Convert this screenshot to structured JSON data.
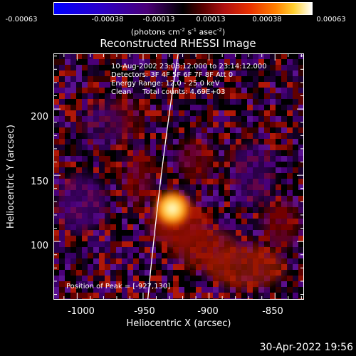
{
  "colorbar": {
    "ticks": [
      "-0.00063",
      "-0.00038",
      "-0.00013",
      "0.00013",
      "0.00038",
      "0.00063"
    ],
    "units_prefix": "(photons cm",
    "units_exp1": "-2",
    "units_mid": " s",
    "units_exp2": "-1",
    "units_mid2": " asec",
    "units_exp3": "-2",
    "units_suffix": ")"
  },
  "title": "Reconstructed RHESSI Image",
  "info": {
    "time": "10-Aug-2002 23:08:12.000 to 23:14:12.000",
    "detectors": "Detectors: 3F 4F 5F 6F 7F 8F Att 0",
    "energy": "Energy Range: 12.0 - 25.0 keV",
    "clean": "Clean     Total counts: 4.69E+03",
    "peak": "Position of Peak = [-927,130]"
  },
  "axes": {
    "xlabel": "Heliocentric X (arcsec)",
    "ylabel": "Heliocentric Y (arcsec)",
    "xticks": [
      "-1000",
      "-950",
      "-900",
      "-850"
    ],
    "yticks": [
      "200",
      "150",
      "100"
    ],
    "xlim": [
      -1018,
      -828
    ],
    "ylim": [
      56,
      242
    ]
  },
  "footer": {
    "date": "30-Apr-2022 19:56"
  },
  "colors": {
    "background": "#000000",
    "foreground": "#ffffff",
    "peak": "#ffffd0"
  }
}
